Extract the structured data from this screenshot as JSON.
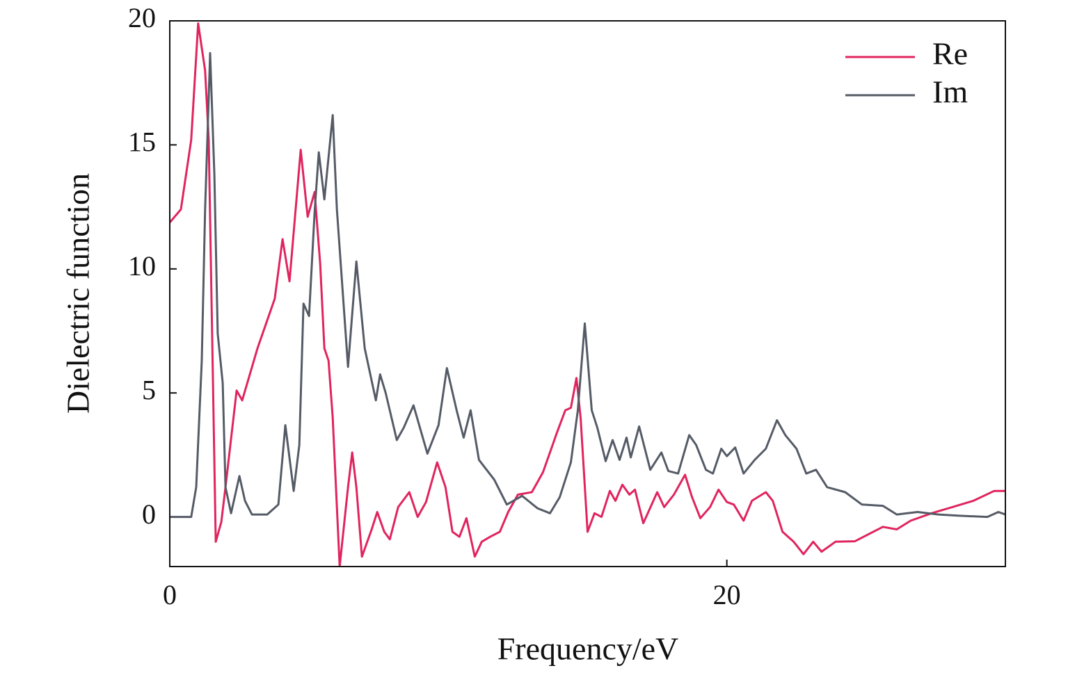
{
  "chart_data": {
    "type": "line",
    "xlabel": "Frequency/eV",
    "ylabel": "Dielectric function",
    "xlim": [
      0,
      30
    ],
    "xticks": [
      0,
      20
    ],
    "ylim": [
      -2,
      20
    ],
    "yticks": [
      0,
      5,
      10,
      15,
      20
    ],
    "legend": "upper right",
    "grid": false,
    "series": [
      {
        "name": "Re",
        "color": "#e0245e",
        "x": [
          0,
          0.4,
          0.77,
          1.02,
          1.27,
          1.4,
          1.65,
          1.85,
          2.0,
          2.4,
          2.6,
          3.15,
          3.77,
          4.05,
          4.3,
          4.7,
          4.95,
          5.2,
          5.4,
          5.55,
          5.7,
          5.85,
          6.1,
          6.4,
          6.55,
          6.7,
          6.9,
          7.25,
          7.45,
          7.7,
          7.9,
          8.2,
          8.6,
          8.9,
          9.2,
          9.6,
          9.9,
          10.15,
          10.4,
          10.65,
          10.95,
          11.2,
          11.5,
          11.85,
          12.15,
          12.5,
          13.0,
          13.4,
          13.9,
          14.2,
          14.4,
          14.6,
          14.75,
          15.0,
          15.25,
          15.5,
          15.8,
          16.0,
          16.25,
          16.5,
          16.7,
          17.0,
          17.5,
          17.75,
          18.1,
          18.5,
          18.75,
          19.05,
          19.4,
          19.7,
          20.0,
          20.25,
          20.6,
          20.9,
          21.4,
          21.65,
          22.0,
          22.4,
          22.75,
          23.1,
          23.4,
          23.9,
          24.6,
          25.6,
          26.1,
          26.6,
          27.35,
          28.1,
          28.85,
          29.6,
          30
        ],
        "values": [
          11.87,
          12.4,
          15.2,
          19.9,
          18,
          15.2,
          -1.0,
          -0.2,
          1.2,
          5.1,
          4.7,
          6.8,
          8.8,
          11.2,
          9.5,
          14.8,
          12.1,
          13.1,
          10.2,
          6.8,
          6.3,
          4.0,
          -2.0,
          1.2,
          2.6,
          1.2,
          -1.6,
          -0.5,
          0.2,
          -0.6,
          -0.9,
          0.4,
          1.0,
          0.0,
          0.6,
          2.2,
          1.2,
          -0.6,
          -0.8,
          -0.05,
          -1.6,
          -1.0,
          -0.8,
          -0.6,
          0.2,
          0.9,
          1.0,
          1.8,
          3.4,
          4.3,
          4.4,
          5.6,
          4.0,
          -0.6,
          0.15,
          0.0,
          1.05,
          0.65,
          1.3,
          0.9,
          1.1,
          -0.25,
          1.0,
          0.4,
          0.9,
          1.7,
          0.8,
          -0.05,
          0.4,
          1.1,
          0.6,
          0.5,
          -0.15,
          0.65,
          1.0,
          0.65,
          -0.6,
          -1.0,
          -1.5,
          -1.0,
          -1.4,
          -1.0,
          -0.98,
          -0.4,
          -0.5,
          -0.15,
          0.15,
          0.4,
          0.65,
          1.05,
          1.05
        ]
      },
      {
        "name": "Im",
        "color": "#555b66",
        "x": [
          0,
          0.77,
          0.95,
          1.15,
          1.27,
          1.45,
          1.6,
          1.72,
          1.9,
          2.0,
          2.2,
          2.5,
          2.7,
          2.95,
          3.5,
          3.9,
          4.15,
          4.45,
          4.65,
          4.8,
          5.0,
          5.2,
          5.35,
          5.55,
          5.85,
          6.0,
          6.4,
          6.7,
          7.0,
          7.4,
          7.55,
          7.75,
          8.15,
          8.4,
          8.75,
          9.25,
          9.65,
          9.95,
          10.3,
          10.55,
          10.8,
          11.1,
          11.65,
          12.1,
          12.65,
          13.2,
          13.65,
          14.0,
          14.4,
          14.65,
          14.9,
          15.15,
          15.35,
          15.65,
          15.9,
          16.15,
          16.4,
          16.55,
          16.85,
          17.25,
          17.65,
          17.9,
          18.25,
          18.65,
          18.9,
          19.25,
          19.5,
          19.8,
          20.0,
          20.3,
          20.6,
          21.0,
          21.4,
          21.8,
          22.1,
          22.5,
          22.85,
          23.2,
          23.6,
          24.25,
          24.85,
          25.6,
          26.1,
          26.85,
          27.6,
          28.35,
          29.35,
          29.75,
          30
        ],
        "values": [
          0,
          0,
          1.2,
          6.3,
          12.4,
          18.7,
          13.8,
          7.4,
          5.4,
          1.2,
          0.15,
          1.65,
          0.65,
          0.1,
          0.1,
          0.5,
          3.7,
          1.05,
          2.9,
          8.6,
          8.1,
          12.3,
          14.7,
          12.8,
          16.2,
          12.4,
          6.05,
          10.3,
          6.8,
          4.7,
          5.75,
          5.0,
          3.1,
          3.6,
          4.5,
          2.55,
          3.7,
          6.0,
          4.3,
          3.2,
          4.3,
          2.3,
          1.5,
          0.5,
          0.85,
          0.35,
          0.15,
          0.8,
          2.2,
          4.3,
          7.8,
          4.3,
          3.6,
          2.25,
          3.1,
          2.3,
          3.2,
          2.4,
          3.65,
          1.9,
          2.6,
          1.85,
          1.75,
          3.3,
          2.9,
          1.9,
          1.75,
          2.75,
          2.45,
          2.8,
          1.75,
          2.3,
          2.75,
          3.9,
          3.3,
          2.75,
          1.75,
          1.9,
          1.2,
          1.0,
          0.5,
          0.45,
          0.1,
          0.2,
          0.1,
          0.05,
          0.0,
          0.2,
          0.1
        ]
      }
    ]
  }
}
